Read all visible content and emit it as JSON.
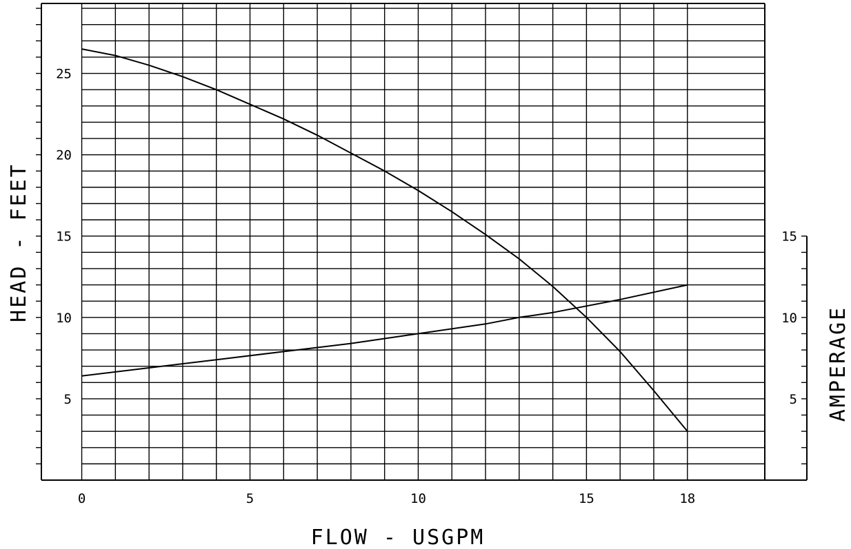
{
  "chart_data": {
    "type": "line",
    "xlabel": "FLOW - USGPM",
    "ylabel": "HEAD - FEET",
    "y2label": "AMPERAGE",
    "x_ticks": [
      {
        "value": 0,
        "label": "0"
      },
      {
        "value": 5,
        "label": "5"
      },
      {
        "value": 10,
        "label": "10"
      },
      {
        "value": 15,
        "label": "15"
      },
      {
        "value": 18,
        "label": "18"
      }
    ],
    "y_ticks": [
      {
        "value": 5,
        "label": "5"
      },
      {
        "value": 10,
        "label": "10"
      },
      {
        "value": 15,
        "label": "15"
      },
      {
        "value": 20,
        "label": "20"
      },
      {
        "value": 25,
        "label": "25"
      }
    ],
    "y2_ticks": [
      {
        "value": 5,
        "label": "5"
      },
      {
        "value": 10,
        "label": "10"
      },
      {
        "value": 15,
        "label": "15"
      }
    ],
    "xlim": [
      -1.2,
      20.3
    ],
    "ylim": [
      0,
      29.3
    ],
    "y2lim": [
      0,
      29.3
    ],
    "grid": true,
    "series": [
      {
        "axis": "left",
        "x": [
          0,
          1,
          2,
          3,
          4,
          5,
          6,
          7,
          8,
          9,
          10,
          11,
          12,
          13,
          14,
          15,
          16,
          17,
          18
        ],
        "y": [
          26.5,
          26.1,
          25.5,
          24.8,
          24.0,
          23.1,
          22.2,
          21.2,
          20.1,
          19.0,
          17.8,
          16.5,
          15.1,
          13.6,
          11.9,
          10.0,
          7.9,
          5.5,
          3.0
        ]
      },
      {
        "axis": "right",
        "x": [
          0,
          2,
          4,
          6,
          8,
          10,
          12,
          13,
          14,
          16,
          18
        ],
        "y": [
          6.4,
          6.9,
          7.4,
          7.9,
          8.4,
          9.0,
          9.6,
          10.0,
          10.3,
          11.1,
          12.0
        ]
      }
    ],
    "colors": {
      "line": "#000000",
      "grid": "#000000",
      "background": "#ffffff"
    }
  }
}
